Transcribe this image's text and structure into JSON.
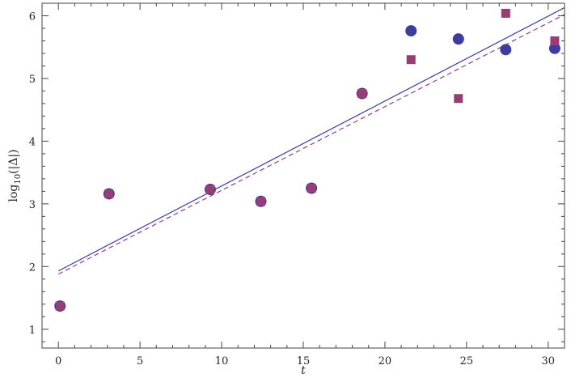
{
  "chart_data": {
    "type": "scatter",
    "xlabel": "t",
    "ylabel": "log10(|Δ|)",
    "ylabel_parts": {
      "prefix": "log",
      "sub": "10",
      "suffix": "(|Δ|)"
    },
    "xlim": [
      -1.0,
      31.0
    ],
    "ylim": [
      0.7,
      6.2
    ],
    "xticks": [
      0,
      5,
      10,
      15,
      20,
      25,
      30
    ],
    "yticks": [
      1,
      2,
      3,
      4,
      5,
      6
    ],
    "x_minor_step": 1,
    "y_minor_step": 0.2,
    "grid": false,
    "series": [
      {
        "marker": "circle",
        "color": "#3f3c9e",
        "points": [
          [
            0.1,
            1.37
          ],
          [
            3.1,
            3.16
          ],
          [
            9.3,
            3.23
          ],
          [
            12.4,
            3.04
          ],
          [
            15.5,
            3.25
          ],
          [
            18.6,
            4.76
          ],
          [
            21.6,
            5.76
          ],
          [
            24.5,
            5.63
          ],
          [
            27.4,
            5.46
          ],
          [
            30.4,
            5.48
          ]
        ]
      },
      {
        "marker": "square",
        "color": "#973f74",
        "points": [
          [
            0.1,
            1.37
          ],
          [
            3.1,
            3.16
          ],
          [
            9.3,
            3.23
          ],
          [
            12.4,
            3.04
          ],
          [
            15.5,
            3.25
          ],
          [
            18.6,
            4.76
          ],
          [
            21.6,
            5.3
          ],
          [
            24.5,
            4.68
          ],
          [
            27.4,
            6.04
          ],
          [
            30.4,
            5.6
          ]
        ]
      }
    ],
    "fit_lines": [
      {
        "style": "solid",
        "color": "#3f3c9e",
        "x": [
          0,
          31
        ],
        "y": [
          1.93,
          6.13
        ]
      },
      {
        "style": "dashed",
        "color": "#973f74",
        "x": [
          0,
          31
        ],
        "y": [
          1.88,
          6.02
        ]
      }
    ]
  }
}
